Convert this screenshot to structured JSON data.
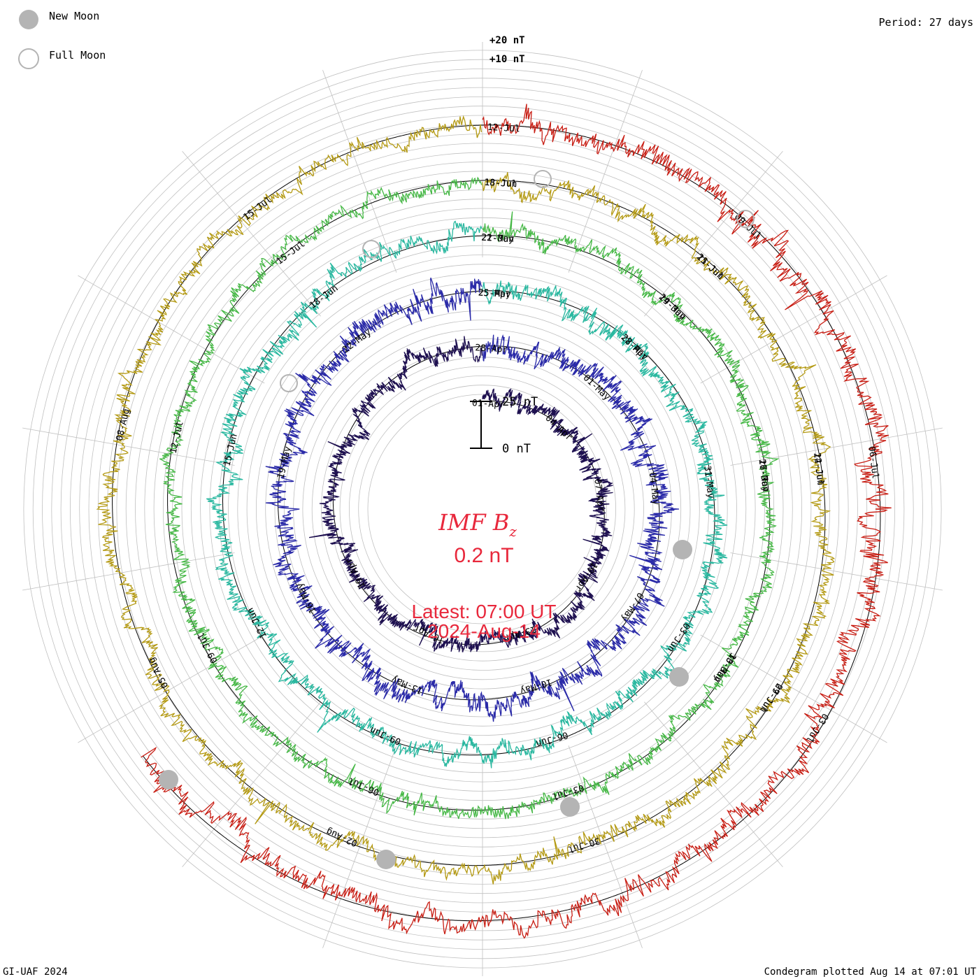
{
  "header": {
    "legend_new_moon": "New Moon",
    "legend_full_moon": "Full Moon",
    "period": "Period: 27 days",
    "scale_20": "+20 nT",
    "scale_10": "+10 nT"
  },
  "scale_bar": {
    "top": "25 nT",
    "bottom": "0 nT"
  },
  "center": {
    "title_main": "IMF B",
    "title_sub": "z",
    "value": "0.2 nT",
    "latest": "Latest: 07:00 UT",
    "date": "2024-Aug-14"
  },
  "footer": {
    "left": "GI-UAF 2024",
    "right": "Condegram plotted Aug 14 at 07:01 UT"
  },
  "colors": {
    "rings": [
      "#1e1050",
      "#2a2aa8",
      "#2e8cc8",
      "#2ab8a0",
      "#46b846",
      "#8cbc1e",
      "#b49a14",
      "#c86414",
      "#c81e14"
    ],
    "grid": "#c0c0c0",
    "baseline": "#000000",
    "text_red": "#e8283c",
    "moon": "#b4b4b4"
  },
  "chart_data": {
    "type": "condegram",
    "title": "IMF Bz",
    "units": "nT",
    "period_days": 27,
    "latest_value": 0.2,
    "latest_time": "2024-Aug-14 07:00 UT",
    "rotations": [
      {
        "ring": 1,
        "amplitude": 6.0,
        "labels": [
          "01-Apr",
          "04-Apr",
          "07-Apr",
          "10-Apr",
          "13-Apr",
          "16-Apr",
          "19-Apr"
        ]
      },
      {
        "ring": 2,
        "amplitude": 8.5,
        "labels": [
          "28-Apr",
          "01-May",
          "04-May",
          "07-May",
          "10-May",
          "13-May",
          "16-May",
          "19-May",
          "22-May",
          "25-Apr",
          "22-Apr"
        ]
      },
      {
        "ring": 3,
        "amplitude": 7.0,
        "labels": [
          "25-May",
          "28-May",
          "31-May",
          "03-Jun",
          "06-Jun",
          "09-Jun",
          "12-Jun",
          "15-Jun",
          "18-Jun",
          "22-May",
          "19-May",
          "16-May",
          "13-May"
        ]
      },
      {
        "ring": 4,
        "amplitude": 6.0,
        "labels": [
          "21-Jun",
          "24-Jun",
          "27-Jun",
          "30-Jun",
          "03-Jul",
          "06-Jul",
          "09-Jul",
          "12-Jul",
          "15-Jul",
          "18-Jun",
          "15-Jun",
          "12-Jun",
          "09-Jun"
        ]
      },
      {
        "ring": 5,
        "amplitude": 6.5,
        "labels": [
          "18-Jul",
          "21-Jul",
          "24-Jul",
          "27-Jul",
          "30-Jul",
          "02-Aug",
          "05-Aug",
          "08-Aug",
          "15-Jul",
          "12-Jul",
          "09-Jul",
          "06-Jul",
          "03-Jul"
        ]
      },
      {
        "ring": 6,
        "amplitude": 9.0,
        "labels": []
      }
    ],
    "new_moons": [
      "07-Apr",
      "06-May",
      "06-Jun",
      "05-Jul",
      "04-Aug"
    ],
    "full_moons": [
      "23-Apr",
      "23-May",
      "22-Jun",
      "21-Jul"
    ]
  }
}
